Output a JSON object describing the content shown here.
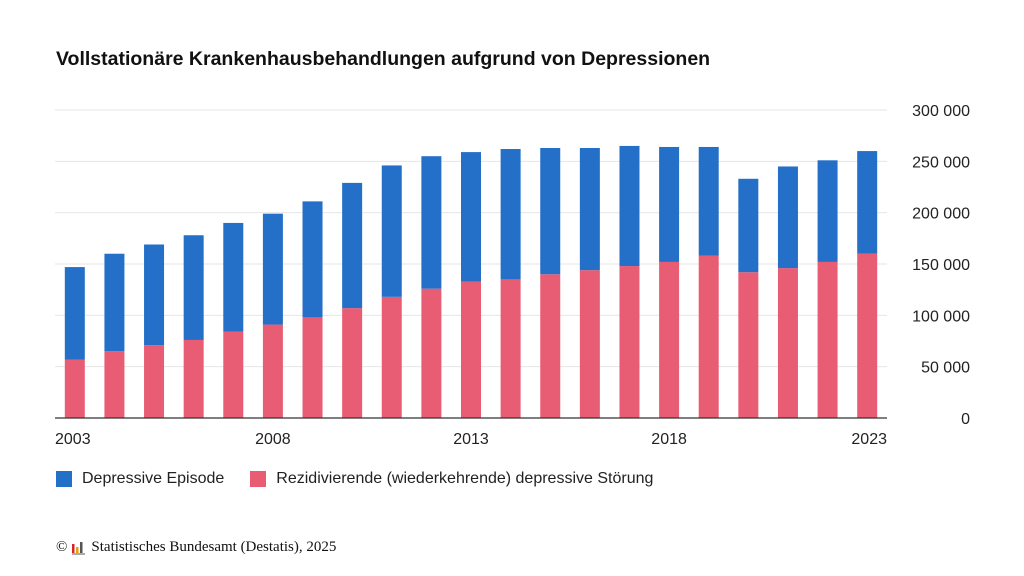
{
  "title": "Vollstationäre Krankenhausbehandlungen aufgrund von Depressionen",
  "colors": {
    "depressive_episode": "#2470c8",
    "recurrent_disorder": "#e85d73",
    "grid": "#e6e6e6",
    "axis": "#333333"
  },
  "legend": {
    "items": [
      {
        "label": "Depressive Episode",
        "color": "#2470c8"
      },
      {
        "label": "Rezidivierende (wiederkehrende) depressive Störung",
        "color": "#e85d73"
      }
    ]
  },
  "footer": {
    "copyright_symbol": "©",
    "source": "Statistisches Bundesamt (Destatis), 2025",
    "logo_icon": "destatis-bars-icon"
  },
  "chart_data": {
    "type": "bar",
    "stacked": true,
    "title": "Vollstationäre Krankenhausbehandlungen aufgrund von Depressionen",
    "categories": [
      "2003",
      "2004",
      "2005",
      "2006",
      "2007",
      "2008",
      "2009",
      "2010",
      "2011",
      "2012",
      "2013",
      "2014",
      "2015",
      "2016",
      "2017",
      "2018",
      "2019",
      "2020",
      "2021",
      "2022",
      "2023"
    ],
    "x_tick_labels": [
      "2003",
      "2008",
      "2013",
      "2018",
      "2023"
    ],
    "series": [
      {
        "name": "Rezidivierende (wiederkehrende) depressive Störung",
        "color": "#e85d73",
        "values": [
          57000,
          65000,
          71000,
          76000,
          84000,
          91000,
          98000,
          107000,
          118000,
          126000,
          133000,
          135000,
          140000,
          144000,
          148000,
          152000,
          158000,
          142000,
          146000,
          152000,
          160000
        ]
      },
      {
        "name": "Depressive Episode",
        "color": "#2470c8",
        "values": [
          90000,
          95000,
          98000,
          102000,
          106000,
          108000,
          113000,
          122000,
          128000,
          129000,
          126000,
          127000,
          123000,
          119000,
          117000,
          112000,
          106000,
          91000,
          99000,
          99000,
          100000
        ]
      }
    ],
    "ylim": [
      0,
      300000
    ],
    "y_ticks": [
      0,
      50000,
      100000,
      150000,
      200000,
      250000,
      300000
    ],
    "y_tick_labels": [
      "0",
      "50 000",
      "100 000",
      "150 000",
      "200 000",
      "250 000",
      "300 000"
    ],
    "y_axis_side": "right",
    "grid": true,
    "legend_position": "bottom-left",
    "xlabel": "",
    "ylabel": ""
  }
}
